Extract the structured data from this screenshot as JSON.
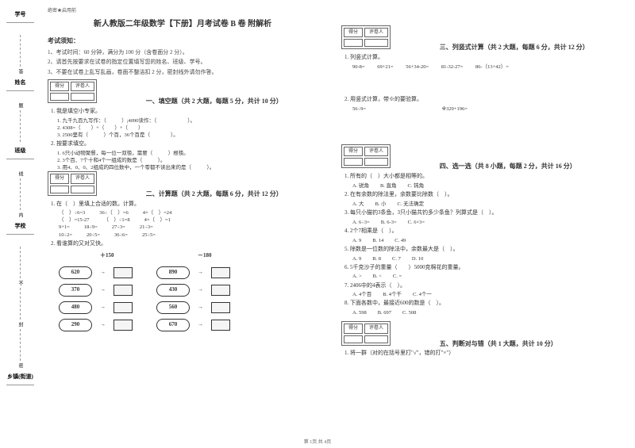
{
  "leftMargin": {
    "labels": [
      "学号",
      "姓名",
      "班级",
      "学校",
      "乡镇(街道)"
    ],
    "verts": [
      "答",
      "题",
      "线",
      "内",
      "不",
      "封",
      "密"
    ]
  },
  "header_small": "绝密★启用前",
  "title": "新人教版二年级数学【下册】月考试卷 B 卷  附解析",
  "notice_head": "考试须知：",
  "notices": [
    "1、考试时间：60 分钟，满分为 100 分（含卷面分 2 分）。",
    "2、请首先按要求在试卷的指定位置填写您的姓名、班级、学号。",
    "3、不要在试卷上乱写乱画，卷面不整洁扣 2 分，密封线外请勿作答。"
  ],
  "score_labels": {
    "a": "得分",
    "b": "评卷人"
  },
  "sec1": {
    "title": "一、填空题（共 2 大题，每题 5 分，共计 10 分）",
    "q1": "1. 我是填空小专家。",
    "q1a": "1. 九千九百九写作：（　　　）;4090读作：（　　　　　　）。",
    "q1b": "2. 4308=（　　）+（　　）+（　　）",
    "q1c": "3. 2500里有（　　　）个百，36个百是（　　　　）。",
    "q2": "2. 按要求填空。",
    "q2a": "1. 6只小动物聚餐，每一位一双筷，需要（　　　）根筷。",
    "q2b": "2. 3个百、7个十和4个一组成的数是（　　　）。",
    "q2c": "3. 用4、0、0、2组成的四位数中，一个零都不读出来的是（　　　）。"
  },
  "sec2": {
    "title": "二、计算题（共 2 大题，每题 6 分，共计 12 分）",
    "q1": "1. 在（　）里填上合适的数。计算。",
    "r1": [
      "（　）÷6=3",
      "36÷（　）=6",
      "4×（　）=24"
    ],
    "r2": [
      "（　）=15-27",
      "（　）÷1=8",
      "4×（　）=1"
    ],
    "r3": [
      "9+1=",
      "18÷9=",
      "27÷3=",
      "21÷3="
    ],
    "r4": [
      "10÷2=",
      "20÷5=",
      "36÷6=",
      "25÷5="
    ],
    "q2": "2. 看谁算的又对又快。",
    "opA": "＋150",
    "opB": "－180",
    "colA": [
      "620",
      "370",
      "480",
      "290"
    ],
    "colB": [
      "890",
      "430",
      "560",
      "670"
    ]
  },
  "sec3": {
    "title": "三、列竖式计算（共 2 大题，每题 6 分，共计 12 分）",
    "q1": "1. 列竖式计算。",
    "r1": [
      "90-8=",
      "69+21=",
      "56+34-20=",
      "81-32-27=",
      "86-（13+42）="
    ],
    "q2": "2. 用竖式计算，带※的要验算。",
    "r2": [
      "56÷9=",
      "",
      "※329+196="
    ]
  },
  "sec4": {
    "title": "四、选一选（共 8 小题，每题 2 分，共计 16 分）",
    "items": [
      {
        "q": "1. 所有的（　）大小都是相等的。",
        "opts": [
          "A. 锐角",
          "B. 直角",
          "C. 钝角"
        ]
      },
      {
        "q": "2. 在有余数的除法里，余数要比除数（　）。",
        "opts": [
          "A. 大",
          "B. 小",
          "C. 无法确定"
        ]
      },
      {
        "q": "3. 每只小猫钓3条鱼，3只小猫共钓多少条鱼？列算式是（　）。",
        "opts": [
          "A. 6÷3=",
          "B. 6-3=",
          "C. 6×3="
        ]
      },
      {
        "q": "4. 2个7相乘是（　）。",
        "opts": [
          "A. 9",
          "B. 14",
          "C. 49"
        ]
      },
      {
        "q": "5. 除数是一位数的除法中，余数最大是（　）。",
        "opts": [
          "A. 9",
          "B. 8",
          "C. 7",
          "D. 10"
        ]
      },
      {
        "q": "6. 5千克沙子的重量（　　）5000克棉花的重量。",
        "opts": [
          "A. >",
          "B. <",
          "C. ="
        ]
      },
      {
        "q": "7. 2406中的4表示（　）。",
        "opts": [
          "A. 4个百",
          "B. 4个千",
          "C. 4个一"
        ]
      },
      {
        "q": "8. 下面各数中，最接近600的数是（　）。",
        "opts": [
          "A. 598",
          "B. 697",
          "C. 508"
        ]
      }
    ]
  },
  "sec5": {
    "title": "五、判断对与错（共 1 大题，共计 10 分）",
    "q1": "1. 将一群（对的在括号里打\"√\"，错的打\"×\"）"
  },
  "footer": "第 1页 共 4页"
}
